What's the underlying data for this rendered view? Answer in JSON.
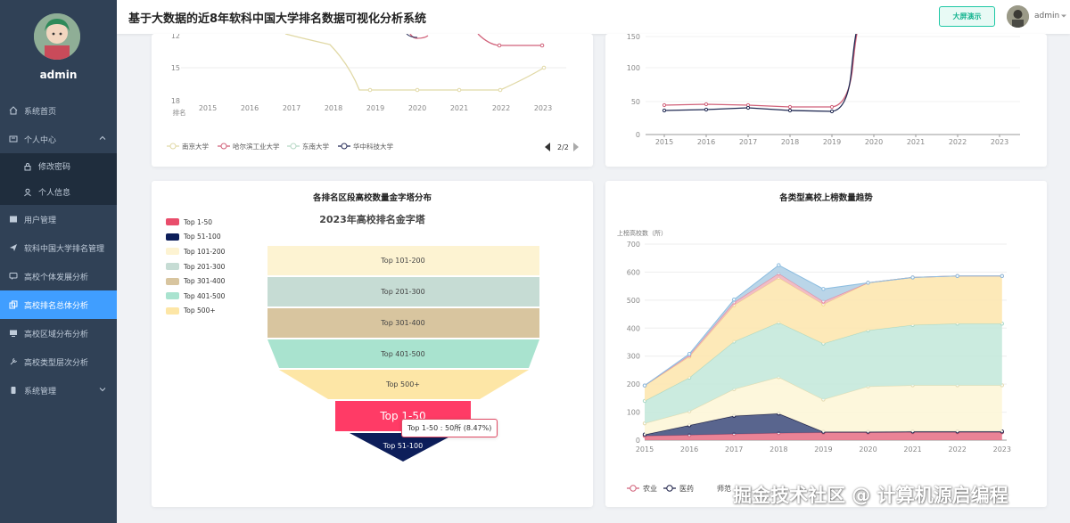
{
  "app": {
    "title": "基于大数据的近8年软科中国大学排名数据可视化分析系统",
    "big_screen_label": "大屏演示",
    "username": "admin"
  },
  "sidebar": {
    "username": "admin",
    "items": [
      {
        "label": "系统首页",
        "icon": "home-icon"
      },
      {
        "label": "个人中心",
        "icon": "user-card-icon",
        "expanded": true
      },
      {
        "label": "修改密码",
        "icon": "lock-icon",
        "sub": true
      },
      {
        "label": "个人信息",
        "icon": "person-icon",
        "sub": true
      },
      {
        "label": "用户管理",
        "icon": "users-icon"
      },
      {
        "label": "软科中国大学排名管理",
        "icon": "send-icon"
      },
      {
        "label": "高校个体发展分析",
        "icon": "chat-icon"
      },
      {
        "label": "高校排名总体分析",
        "icon": "copy-icon",
        "active": true
      },
      {
        "label": "高校区域分布分析",
        "icon": "monitor-icon"
      },
      {
        "label": "高校类型层次分析",
        "icon": "tools-icon"
      },
      {
        "label": "系统管理",
        "icon": "phone-icon",
        "expandable": true
      }
    ]
  },
  "colors": {
    "sidebar_bg": "#304156",
    "active": "#409eff",
    "accent_green": "#13b38f"
  },
  "charts": {
    "tl": {
      "x_ticks": [
        "2015",
        "2016",
        "2017",
        "2018",
        "2019",
        "2020",
        "2021",
        "2022",
        "2023"
      ],
      "y_ticks": [
        "12",
        "15",
        "18"
      ],
      "ylabel": "排名",
      "legend": [
        "南京大学",
        "哈尔滨工业大学",
        "东南大学",
        "华中科技大学"
      ],
      "page": "2/2"
    },
    "tr": {
      "x_ticks": [
        "2015",
        "2016",
        "2017",
        "2018",
        "2019",
        "2020",
        "2021",
        "2022",
        "2023"
      ],
      "y_ticks": [
        "0",
        "50",
        "100",
        "150"
      ]
    },
    "bl": {
      "title": "各排名区段高校数量金字塔分布",
      "subtitle": "2023年高校排名金字塔",
      "legend": [
        {
          "label": "Top 1-50",
          "color": "#e94d6b"
        },
        {
          "label": "Top 51-100",
          "color": "#0d1e5a"
        },
        {
          "label": "Top 101-200",
          "color": "#fdf3d2"
        },
        {
          "label": "Top 201-300",
          "color": "#c6dcd4"
        },
        {
          "label": "Top 301-400",
          "color": "#d8c59f"
        },
        {
          "label": "Top 401-500",
          "color": "#a9e3cf"
        },
        {
          "label": "Top 500+",
          "color": "#fde6a6"
        }
      ],
      "tooltip": "Top 1-50 : 50所 (8.47%)"
    },
    "br": {
      "title": "各类型高校上榜数量趋势",
      "ylabel": "上榜高校数（所）",
      "x_ticks": [
        "2015",
        "2016",
        "2017",
        "2018",
        "2019",
        "2020",
        "2021",
        "2022",
        "2023"
      ],
      "y_ticks": [
        "0",
        "100",
        "200",
        "300",
        "400",
        "500",
        "600",
        "700"
      ],
      "legend": [
        "农业",
        "医药",
        "师范"
      ]
    }
  },
  "chart_data": [
    {
      "type": "line",
      "xlabel": "",
      "ylabel": "排名",
      "x": [
        2015,
        2016,
        2017,
        2018,
        2019,
        2020,
        2021,
        2022,
        2023
      ],
      "ylim": [
        18,
        12
      ],
      "series": [
        {
          "name": "南京大学",
          "values": [
            null,
            null,
            12,
            14,
            17.3,
            17.3,
            17.3,
            16.3,
            15
          ]
        },
        {
          "name": "哈尔滨工业大学",
          "values": [
            null,
            null,
            null,
            null,
            null,
            12,
            12,
            13,
            13
          ]
        },
        {
          "name": "东南大学",
          "values": [
            null,
            null,
            null,
            null,
            null,
            null,
            null,
            null,
            null
          ]
        },
        {
          "name": "华中科技大学",
          "values": [
            null,
            null,
            null,
            null,
            null,
            12,
            12,
            null,
            null
          ]
        }
      ]
    },
    {
      "type": "line",
      "x": [
        2015,
        2016,
        2017,
        2018,
        2019,
        2020,
        2021,
        2022,
        2023
      ],
      "ylim": [
        0,
        150
      ],
      "series": [
        {
          "values": [
            45,
            46,
            45,
            42,
            42,
            200,
            null,
            null,
            null
          ]
        },
        {
          "values": [
            38,
            39,
            40,
            37,
            36,
            200,
            null,
            null,
            null
          ]
        }
      ]
    },
    {
      "type": "funnel",
      "title": "各排名区段高校数量金字塔分布",
      "subtitle": "2023年高校排名金字塔",
      "categories": [
        "Top 101-200",
        "Top 201-300",
        "Top 301-400",
        "Top 401-500",
        "Top 500+",
        "Top 1-50",
        "Top 51-100"
      ],
      "tooltip": {
        "label": "Top 1-50",
        "count": 50,
        "percent": 8.47
      }
    },
    {
      "type": "area",
      "title": "各类型高校上榜数量趋势",
      "ylabel": "上榜高校数（所）",
      "x": [
        2015,
        2016,
        2017,
        2018,
        2019,
        2020,
        2021,
        2022,
        2023
      ],
      "ylim": [
        0,
        700
      ],
      "series": [
        {
          "name": "农业",
          "values": [
            15,
            18,
            22,
            25,
            27,
            27,
            28,
            28,
            28
          ]
        },
        {
          "name": "医药",
          "values": [
            5,
            35,
            65,
            70,
            3,
            3,
            3,
            3,
            3
          ]
        },
        {
          "values": [
            40,
            50,
            95,
            130,
            115,
            162,
            165,
            165,
            165
          ]
        },
        {
          "values": [
            80,
            120,
            170,
            195,
            200,
            200,
            215,
            220,
            220
          ]
        },
        {
          "values": [
            55,
            75,
            130,
            160,
            140,
            170,
            170,
            170,
            170
          ]
        },
        {
          "values": [
            0,
            5,
            10,
            15,
            10,
            0,
            0,
            0,
            0
          ]
        },
        {
          "values": [
            0,
            5,
            10,
            30,
            45,
            0,
            0,
            0,
            0
          ]
        }
      ]
    }
  ]
}
